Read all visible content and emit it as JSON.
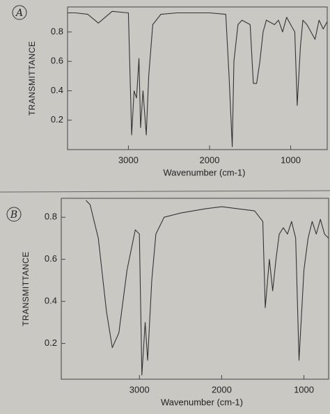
{
  "chart_data": [
    {
      "type": "line",
      "annotation": "A",
      "ylabel": "TRANSMITTANCE",
      "xlabel": "Wavenumber (cm-1)",
      "color": "#333333",
      "x": [
        3750,
        3650,
        3500,
        3370,
        3200,
        3000,
        2960,
        2930,
        2900,
        2870,
        2850,
        2820,
        2780,
        2750,
        2700,
        2600,
        2400,
        2000,
        1800,
        1760,
        1720,
        1700,
        1650,
        1600,
        1500,
        1460,
        1420,
        1380,
        1340,
        1300,
        1200,
        1150,
        1100,
        1050,
        1000,
        950,
        920,
        880,
        850,
        800,
        700,
        650,
        600,
        550
      ],
      "values": [
        0.93,
        0.93,
        0.92,
        0.86,
        0.94,
        0.93,
        0.1,
        0.4,
        0.35,
        0.62,
        0.15,
        0.4,
        0.1,
        0.5,
        0.85,
        0.92,
        0.93,
        0.93,
        0.92,
        0.5,
        0.02,
        0.6,
        0.85,
        0.88,
        0.85,
        0.45,
        0.45,
        0.6,
        0.8,
        0.88,
        0.85,
        0.88,
        0.8,
        0.9,
        0.85,
        0.8,
        0.3,
        0.7,
        0.88,
        0.85,
        0.75,
        0.88,
        0.82,
        0.87
      ],
      "xlim": [
        3750,
        550
      ],
      "ylim": [
        0,
        0.97
      ],
      "xticks": [
        3000,
        2000,
        1000
      ],
      "yticks": [
        0.2,
        0.4,
        0.6,
        0.8
      ]
    },
    {
      "type": "line",
      "annotation": "B",
      "ylabel": "TRANSMITTANCE",
      "xlabel": "Wavenumber (cm-1)",
      "color": "#333333",
      "x": [
        3650,
        3600,
        3500,
        3400,
        3330,
        3250,
        3150,
        3050,
        3000,
        2970,
        2930,
        2900,
        2850,
        2800,
        2700,
        2500,
        2200,
        2000,
        1800,
        1600,
        1500,
        1470,
        1420,
        1380,
        1340,
        1300,
        1250,
        1200,
        1150,
        1100,
        1060,
        1000,
        950,
        900,
        850,
        800,
        750,
        700
      ],
      "values": [
        0.88,
        0.86,
        0.7,
        0.35,
        0.18,
        0.25,
        0.55,
        0.74,
        0.72,
        0.05,
        0.3,
        0.12,
        0.5,
        0.72,
        0.8,
        0.82,
        0.84,
        0.85,
        0.84,
        0.83,
        0.78,
        0.37,
        0.6,
        0.45,
        0.6,
        0.72,
        0.75,
        0.72,
        0.78,
        0.7,
        0.12,
        0.55,
        0.7,
        0.78,
        0.72,
        0.79,
        0.72,
        0.7
      ],
      "xlim": [
        3950,
        700
      ],
      "ylim": [
        0.03,
        0.89
      ],
      "xticks": [
        3000,
        2000,
        1000
      ],
      "yticks": [
        0.2,
        0.4,
        0.6,
        0.8
      ]
    }
  ]
}
